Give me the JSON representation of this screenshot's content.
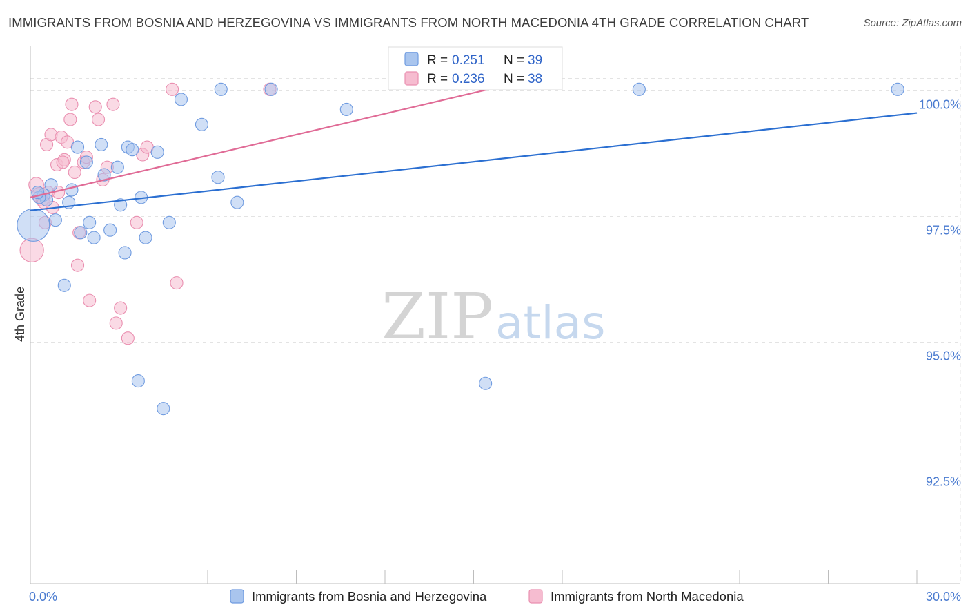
{
  "title": "IMMIGRANTS FROM BOSNIA AND HERZEGOVINA VS IMMIGRANTS FROM NORTH MACEDONIA 4TH GRADE CORRELATION CHART",
  "source": "Source: ZipAtlas.com",
  "watermark": {
    "zip": "ZIP",
    "atlas": "atlas"
  },
  "colors": {
    "blue_fill": "#a9c5ee",
    "blue_stroke": "#6f9be0",
    "blue_line": "#2b6fd1",
    "pink_fill": "#f6bcd0",
    "pink_stroke": "#ea8fb0",
    "pink_line": "#e06b96",
    "grid": "#e3e3e3",
    "tick_label": "#4a7bd0"
  },
  "chart_data": {
    "type": "scatter",
    "title": "IMMIGRANTS FROM BOSNIA AND HERZEGOVINA VS IMMIGRANTS FROM NORTH MACEDONIA 4TH GRADE CORRELATION CHART",
    "xlabel": "",
    "ylabel": "4th Grade",
    "xlim": [
      0.0,
      30.0
    ],
    "ylim": [
      90.2,
      100.9
    ],
    "x_tick_labels": [
      {
        "value": 0.0,
        "label": "0.0%"
      },
      {
        "value": 30.0,
        "label": "30.0%"
      }
    ],
    "y_tick_labels": [
      {
        "value": 100.0,
        "label": "100.0%"
      },
      {
        "value": 97.5,
        "label": "97.5%"
      },
      {
        "value": 95.0,
        "label": "95.0%"
      },
      {
        "value": 92.5,
        "label": "92.5%"
      }
    ],
    "legend": {
      "position": "top-center",
      "entries": [
        {
          "r_label": "R =",
          "r_value": "0.251",
          "n_label": "N =",
          "n_value": "39"
        },
        {
          "r_label": "R =",
          "r_value": "0.236",
          "n_label": "N =",
          "n_value": "38"
        }
      ]
    },
    "series": [
      {
        "name": "Immigrants from Bosnia and Herzegovina",
        "color": "#a9c5ee",
        "trend": {
          "x": [
            0.0,
            30.0
          ],
          "y": [
            97.62,
            99.56
          ]
        },
        "points": [
          {
            "x": 0.1,
            "y": 97.33,
            "s": 2.6
          },
          {
            "x": 0.45,
            "y": 97.93,
            "s": 1.0
          },
          {
            "x": 0.55,
            "y": 97.83,
            "s": 1.0
          },
          {
            "x": 0.7,
            "y": 98.13,
            "s": 1.0
          },
          {
            "x": 0.85,
            "y": 97.43,
            "s": 1.0
          },
          {
            "x": 1.15,
            "y": 96.13,
            "s": 1.0
          },
          {
            "x": 1.3,
            "y": 97.78,
            "s": 1.0
          },
          {
            "x": 1.4,
            "y": 98.03,
            "s": 1.0
          },
          {
            "x": 1.6,
            "y": 98.88,
            "s": 1.0
          },
          {
            "x": 1.7,
            "y": 97.18,
            "s": 1.0
          },
          {
            "x": 1.9,
            "y": 98.58,
            "s": 1.0
          },
          {
            "x": 2.0,
            "y": 97.38,
            "s": 1.0
          },
          {
            "x": 2.15,
            "y": 97.08,
            "s": 1.0
          },
          {
            "x": 2.4,
            "y": 98.93,
            "s": 1.0
          },
          {
            "x": 2.5,
            "y": 98.33,
            "s": 1.0
          },
          {
            "x": 2.7,
            "y": 97.23,
            "s": 1.0
          },
          {
            "x": 2.95,
            "y": 98.48,
            "s": 1.0
          },
          {
            "x": 3.05,
            "y": 97.73,
            "s": 1.0
          },
          {
            "x": 3.2,
            "y": 96.78,
            "s": 1.0
          },
          {
            "x": 3.3,
            "y": 98.88,
            "s": 1.0
          },
          {
            "x": 3.45,
            "y": 98.83,
            "s": 1.0
          },
          {
            "x": 3.65,
            "y": 94.23,
            "s": 1.0
          },
          {
            "x": 3.75,
            "y": 97.88,
            "s": 1.0
          },
          {
            "x": 3.9,
            "y": 97.08,
            "s": 1.0
          },
          {
            "x": 4.3,
            "y": 98.78,
            "s": 1.0
          },
          {
            "x": 4.5,
            "y": 93.68,
            "s": 1.0
          },
          {
            "x": 4.7,
            "y": 97.38,
            "s": 1.0
          },
          {
            "x": 5.1,
            "y": 99.83,
            "s": 1.0
          },
          {
            "x": 5.8,
            "y": 99.33,
            "s": 1.0
          },
          {
            "x": 6.35,
            "y": 98.28,
            "s": 1.0
          },
          {
            "x": 6.45,
            "y": 100.03,
            "s": 1.0
          },
          {
            "x": 7.0,
            "y": 97.78,
            "s": 1.0
          },
          {
            "x": 8.15,
            "y": 100.03,
            "s": 1.0
          },
          {
            "x": 10.7,
            "y": 99.63,
            "s": 1.0
          },
          {
            "x": 15.4,
            "y": 94.18,
            "s": 1.0
          },
          {
            "x": 20.6,
            "y": 100.03,
            "s": 1.0
          },
          {
            "x": 29.35,
            "y": 100.03,
            "s": 1.0
          },
          {
            "x": 0.3,
            "y": 97.88,
            "s": 1.0
          },
          {
            "x": 0.25,
            "y": 97.98,
            "s": 1.0
          }
        ]
      },
      {
        "name": "Immigrants from North Macedonia",
        "color": "#f6bcd0",
        "trend": {
          "x": [
            0.0,
            15.5
          ],
          "y": [
            97.88,
            100.03
          ]
        },
        "points": [
          {
            "x": 0.05,
            "y": 96.83,
            "s": 1.9
          },
          {
            "x": 0.2,
            "y": 98.13,
            "s": 1.2
          },
          {
            "x": 0.3,
            "y": 97.93,
            "s": 1.2
          },
          {
            "x": 0.4,
            "y": 97.83,
            "s": 1.0
          },
          {
            "x": 0.5,
            "y": 97.38,
            "s": 1.0
          },
          {
            "x": 0.55,
            "y": 98.93,
            "s": 1.0
          },
          {
            "x": 0.6,
            "y": 97.98,
            "s": 1.0
          },
          {
            "x": 0.7,
            "y": 99.13,
            "s": 1.0
          },
          {
            "x": 0.75,
            "y": 97.68,
            "s": 1.0
          },
          {
            "x": 0.9,
            "y": 98.53,
            "s": 1.0
          },
          {
            "x": 0.95,
            "y": 97.98,
            "s": 1.0
          },
          {
            "x": 1.05,
            "y": 99.08,
            "s": 1.0
          },
          {
            "x": 1.15,
            "y": 98.63,
            "s": 1.0
          },
          {
            "x": 1.25,
            "y": 98.98,
            "s": 1.0
          },
          {
            "x": 1.35,
            "y": 99.43,
            "s": 1.0
          },
          {
            "x": 1.4,
            "y": 99.73,
            "s": 1.0
          },
          {
            "x": 1.5,
            "y": 98.38,
            "s": 1.0
          },
          {
            "x": 1.6,
            "y": 96.53,
            "s": 1.0
          },
          {
            "x": 1.65,
            "y": 97.18,
            "s": 1.0
          },
          {
            "x": 1.8,
            "y": 98.58,
            "s": 1.0
          },
          {
            "x": 1.9,
            "y": 98.68,
            "s": 1.0
          },
          {
            "x": 2.0,
            "y": 95.83,
            "s": 1.0
          },
          {
            "x": 2.2,
            "y": 99.68,
            "s": 1.0
          },
          {
            "x": 2.3,
            "y": 99.43,
            "s": 1.0
          },
          {
            "x": 2.45,
            "y": 98.23,
            "s": 1.0
          },
          {
            "x": 2.6,
            "y": 98.48,
            "s": 1.0
          },
          {
            "x": 2.8,
            "y": 99.73,
            "s": 1.0
          },
          {
            "x": 2.9,
            "y": 95.38,
            "s": 1.0
          },
          {
            "x": 3.05,
            "y": 95.68,
            "s": 1.0
          },
          {
            "x": 3.3,
            "y": 95.08,
            "s": 1.0
          },
          {
            "x": 3.6,
            "y": 97.38,
            "s": 1.0
          },
          {
            "x": 3.8,
            "y": 98.73,
            "s": 1.0
          },
          {
            "x": 3.95,
            "y": 98.88,
            "s": 1.0
          },
          {
            "x": 4.8,
            "y": 100.03,
            "s": 1.0
          },
          {
            "x": 4.95,
            "y": 96.18,
            "s": 1.0
          },
          {
            "x": 8.1,
            "y": 100.03,
            "s": 1.0
          },
          {
            "x": 0.45,
            "y": 97.78,
            "s": 1.0
          },
          {
            "x": 1.1,
            "y": 98.58,
            "s": 1.0
          }
        ]
      }
    ]
  }
}
